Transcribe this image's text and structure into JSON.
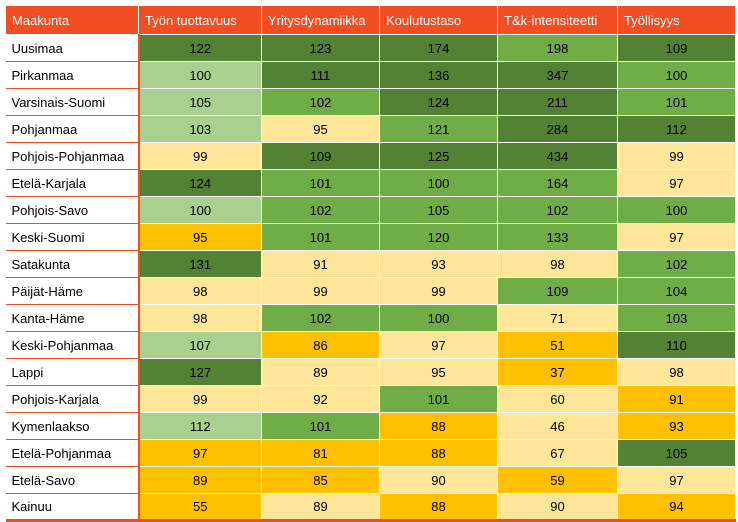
{
  "colors": {
    "header": "#f04e23",
    "dark_green": "#548235",
    "medium_green": "#70ad47",
    "light_green": "#a9d08e",
    "light_yellow": "#ffe699",
    "orange": "#ffc000"
  },
  "chart_data": {
    "type": "table",
    "columns": [
      "Maakunta",
      "Työn tuottavuus",
      "Yritysdynamiikka",
      "Koulutustaso",
      "T&k-intensiteetti",
      "Työllisyys"
    ],
    "rows": [
      {
        "name": "Uusimaa",
        "values": [
          122,
          123,
          174,
          198,
          109
        ],
        "shades": [
          "dark_green",
          "dark_green",
          "dark_green",
          "medium_green",
          "dark_green"
        ]
      },
      {
        "name": "Pirkanmaa",
        "values": [
          100,
          111,
          136,
          347,
          100
        ],
        "shades": [
          "light_green",
          "dark_green",
          "dark_green",
          "dark_green",
          "medium_green"
        ]
      },
      {
        "name": "Varsinais-Suomi",
        "values": [
          105,
          102,
          124,
          211,
          101
        ],
        "shades": [
          "light_green",
          "medium_green",
          "dark_green",
          "dark_green",
          "medium_green"
        ]
      },
      {
        "name": "Pohjanmaa",
        "values": [
          103,
          95,
          121,
          284,
          112
        ],
        "shades": [
          "light_green",
          "light_yellow",
          "medium_green",
          "dark_green",
          "dark_green"
        ]
      },
      {
        "name": "Pohjois-Pohjanmaa",
        "values": [
          99,
          109,
          125,
          434,
          99
        ],
        "shades": [
          "light_yellow",
          "dark_green",
          "dark_green",
          "dark_green",
          "light_yellow"
        ]
      },
      {
        "name": "Etelä-Karjala",
        "values": [
          124,
          101,
          100,
          164,
          97
        ],
        "shades": [
          "dark_green",
          "medium_green",
          "medium_green",
          "medium_green",
          "light_yellow"
        ]
      },
      {
        "name": "Pohjois-Savo",
        "values": [
          100,
          102,
          105,
          102,
          100
        ],
        "shades": [
          "light_green",
          "medium_green",
          "medium_green",
          "medium_green",
          "medium_green"
        ]
      },
      {
        "name": "Keski-Suomi",
        "values": [
          95,
          101,
          120,
          133,
          97
        ],
        "shades": [
          "orange",
          "medium_green",
          "medium_green",
          "medium_green",
          "light_yellow"
        ]
      },
      {
        "name": "Satakunta",
        "values": [
          131,
          91,
          93,
          98,
          102
        ],
        "shades": [
          "dark_green",
          "light_yellow",
          "light_yellow",
          "light_yellow",
          "medium_green"
        ]
      },
      {
        "name": "Päijät-Häme",
        "values": [
          98,
          99,
          99,
          109,
          104
        ],
        "shades": [
          "light_yellow",
          "light_yellow",
          "light_yellow",
          "medium_green",
          "medium_green"
        ]
      },
      {
        "name": "Kanta-Häme",
        "values": [
          98,
          102,
          100,
          71,
          103
        ],
        "shades": [
          "light_yellow",
          "medium_green",
          "medium_green",
          "light_yellow",
          "medium_green"
        ]
      },
      {
        "name": "Keski-Pohjanmaa",
        "values": [
          107,
          86,
          97,
          51,
          110
        ],
        "shades": [
          "light_green",
          "orange",
          "light_yellow",
          "orange",
          "dark_green"
        ]
      },
      {
        "name": "Lappi",
        "values": [
          127,
          89,
          95,
          37,
          98
        ],
        "shades": [
          "dark_green",
          "light_yellow",
          "light_yellow",
          "orange",
          "light_yellow"
        ]
      },
      {
        "name": "Pohjois-Karjala",
        "values": [
          99,
          92,
          101,
          60,
          91
        ],
        "shades": [
          "light_yellow",
          "light_yellow",
          "medium_green",
          "light_yellow",
          "orange"
        ]
      },
      {
        "name": "Kymenlaakso",
        "values": [
          112,
          101,
          88,
          46,
          93
        ],
        "shades": [
          "light_green",
          "medium_green",
          "orange",
          "light_yellow",
          "orange"
        ]
      },
      {
        "name": "Etelä-Pohjanmaa",
        "values": [
          97,
          81,
          88,
          67,
          105
        ],
        "shades": [
          "orange",
          "orange",
          "orange",
          "light_yellow",
          "dark_green"
        ]
      },
      {
        "name": "Etelä-Savo",
        "values": [
          89,
          85,
          90,
          59,
          97
        ],
        "shades": [
          "orange",
          "orange",
          "light_yellow",
          "orange",
          "light_yellow"
        ]
      },
      {
        "name": "Kainuu",
        "values": [
          55,
          89,
          88,
          90,
          94
        ],
        "shades": [
          "orange",
          "light_yellow",
          "orange",
          "light_yellow",
          "orange"
        ]
      }
    ]
  }
}
